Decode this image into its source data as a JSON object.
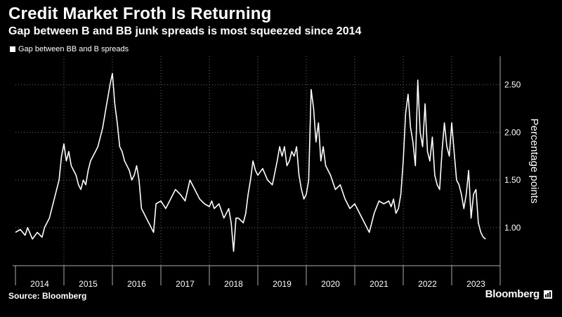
{
  "header": {
    "title": "Credit Market Froth Is Returning",
    "subtitle": "Gap between B and BB junk spreads is most squeezed since 2014"
  },
  "footer": {
    "source": "Source: Bloomberg",
    "brand": "Bloomberg"
  },
  "colors": {
    "background": "#000000",
    "line": "#ffffff",
    "grid": "#666666"
  },
  "chart_data": {
    "type": "line",
    "title": "Credit Market Froth Is Returning",
    "subtitle": "Gap between B and BB junk spreads is most squeezed since 2014",
    "ylabel": "Percentage points",
    "y_axis_position": "right",
    "ylim": [
      0.6,
      2.8
    ],
    "yticks": [
      1.0,
      1.5,
      2.0,
      2.5
    ],
    "ytick_labels": [
      "1.00",
      "1.50",
      "2.00",
      "2.50"
    ],
    "xlim": [
      2014.0,
      2024.0
    ],
    "xtick_labels": [
      "2014",
      "2015",
      "2016",
      "2017",
      "2018",
      "2019",
      "2020",
      "2021",
      "2022",
      "2023"
    ],
    "grid": true,
    "legend_position": "top-left",
    "series": [
      {
        "name": "Gap between BB and B spreads",
        "x": [
          2014.0,
          2014.1,
          2014.2,
          2014.25,
          2014.35,
          2014.45,
          2014.55,
          2014.6,
          2014.65,
          2014.7,
          2014.8,
          2014.9,
          2014.95,
          2015.0,
          2015.05,
          2015.1,
          2015.15,
          2015.2,
          2015.25,
          2015.3,
          2015.35,
          2015.4,
          2015.45,
          2015.5,
          2015.55,
          2015.6,
          2015.65,
          2015.7,
          2015.75,
          2015.8,
          2015.85,
          2015.9,
          2015.95,
          2016.0,
          2016.05,
          2016.1,
          2016.15,
          2016.2,
          2016.25,
          2016.3,
          2016.35,
          2016.4,
          2016.45,
          2016.5,
          2016.55,
          2016.6,
          2016.65,
          2016.7,
          2016.75,
          2016.8,
          2016.85,
          2016.9,
          2017.0,
          2017.1,
          2017.2,
          2017.3,
          2017.4,
          2017.5,
          2017.6,
          2017.7,
          2017.8,
          2017.9,
          2018.0,
          2018.05,
          2018.1,
          2018.2,
          2018.3,
          2018.4,
          2018.45,
          2018.5,
          2018.55,
          2018.6,
          2018.7,
          2018.75,
          2018.8,
          2018.85,
          2018.9,
          2018.95,
          2019.0,
          2019.1,
          2019.2,
          2019.3,
          2019.4,
          2019.45,
          2019.5,
          2019.55,
          2019.6,
          2019.65,
          2019.7,
          2019.75,
          2019.8,
          2019.85,
          2019.9,
          2019.95,
          2020.0,
          2020.05,
          2020.1,
          2020.15,
          2020.2,
          2020.25,
          2020.3,
          2020.35,
          2020.4,
          2020.5,
          2020.6,
          2020.7,
          2020.8,
          2020.9,
          2021.0,
          2021.1,
          2021.2,
          2021.3,
          2021.4,
          2021.5,
          2021.6,
          2021.7,
          2021.75,
          2021.8,
          2021.85,
          2021.9,
          2021.95,
          2022.0,
          2022.05,
          2022.1,
          2022.15,
          2022.2,
          2022.25,
          2022.3,
          2022.35,
          2022.4,
          2022.45,
          2022.5,
          2022.55,
          2022.6,
          2022.65,
          2022.7,
          2022.75,
          2022.8,
          2022.85,
          2022.9,
          2022.95,
          2023.0,
          2023.05,
          2023.1,
          2023.15,
          2023.2,
          2023.25,
          2023.3,
          2023.35,
          2023.4,
          2023.45,
          2023.5,
          2023.55,
          2023.6,
          2023.65,
          2023.7
        ],
        "y": [
          0.95,
          0.98,
          0.92,
          1.0,
          0.88,
          0.95,
          0.9,
          1.0,
          1.05,
          1.1,
          1.3,
          1.5,
          1.75,
          1.88,
          1.7,
          1.8,
          1.65,
          1.6,
          1.55,
          1.45,
          1.4,
          1.5,
          1.45,
          1.6,
          1.7,
          1.75,
          1.8,
          1.85,
          1.95,
          2.05,
          2.2,
          2.35,
          2.5,
          2.62,
          2.3,
          2.1,
          1.85,
          1.8,
          1.7,
          1.65,
          1.6,
          1.5,
          1.55,
          1.65,
          1.5,
          1.2,
          1.15,
          1.1,
          1.05,
          1.0,
          0.95,
          1.25,
          1.28,
          1.2,
          1.3,
          1.4,
          1.35,
          1.28,
          1.5,
          1.4,
          1.3,
          1.25,
          1.22,
          1.28,
          1.2,
          1.25,
          1.1,
          1.2,
          1.05,
          0.75,
          1.1,
          1.1,
          1.05,
          1.15,
          1.35,
          1.5,
          1.7,
          1.6,
          1.55,
          1.62,
          1.5,
          1.45,
          1.7,
          1.85,
          1.75,
          1.85,
          1.65,
          1.7,
          1.8,
          1.75,
          1.85,
          1.55,
          1.4,
          1.3,
          1.35,
          1.5,
          2.45,
          2.25,
          1.9,
          2.1,
          1.7,
          1.85,
          1.65,
          1.55,
          1.4,
          1.45,
          1.3,
          1.2,
          1.25,
          1.15,
          1.05,
          0.95,
          1.15,
          1.28,
          1.25,
          1.28,
          1.22,
          1.3,
          1.15,
          1.2,
          1.35,
          1.7,
          2.2,
          2.4,
          2.05,
          1.9,
          1.65,
          2.55,
          2.0,
          1.85,
          2.3,
          1.8,
          1.7,
          1.95,
          1.55,
          1.45,
          1.4,
          1.8,
          2.1,
          1.85,
          1.75,
          2.1,
          1.8,
          1.5,
          1.45,
          1.35,
          1.2,
          1.35,
          1.6,
          1.1,
          1.35,
          1.4,
          1.05,
          0.95,
          0.9,
          0.88
        ]
      }
    ]
  }
}
